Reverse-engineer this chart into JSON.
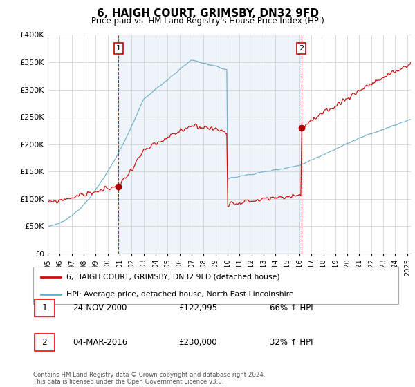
{
  "title": "6, HAIGH COURT, GRIMSBY, DN32 9FD",
  "subtitle": "Price paid vs. HM Land Registry's House Price Index (HPI)",
  "ylim": [
    0,
    400000
  ],
  "xlim_start": 1995.0,
  "xlim_end": 2025.3,
  "sale1_date": 2000.9,
  "sale1_price": 122995,
  "sale2_date": 2016.17,
  "sale2_price": 230000,
  "vline_color": "#cc0000",
  "sale_dot_color": "#aa0000",
  "red_line_color": "#cc1111",
  "blue_line_color": "#6aaac8",
  "shade_color": "#ddeeff",
  "legend_label_red": "6, HAIGH COURT, GRIMSBY, DN32 9FD (detached house)",
  "legend_label_blue": "HPI: Average price, detached house, North East Lincolnshire",
  "table_row1": [
    "1",
    "24-NOV-2000",
    "£122,995",
    "66% ↑ HPI"
  ],
  "table_row2": [
    "2",
    "04-MAR-2016",
    "£230,000",
    "32% ↑ HPI"
  ],
  "footer": "Contains HM Land Registry data © Crown copyright and database right 2024.\nThis data is licensed under the Open Government Licence v3.0.",
  "background_color": "#ffffff",
  "grid_color": "#cccccc",
  "chart_bg": "#eef4fa"
}
